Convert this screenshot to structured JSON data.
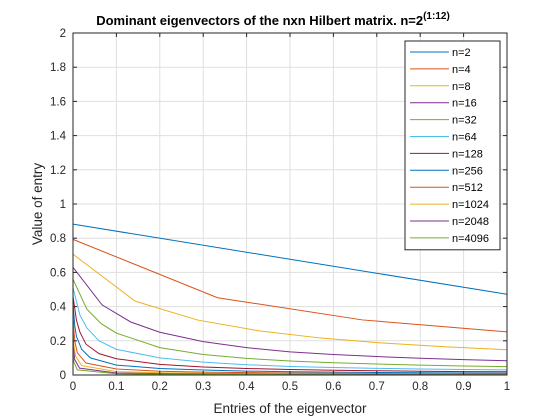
{
  "chart_data": {
    "type": "line",
    "title": "Dominant eigenvectors of the nxn Hilbert matrix. n=2",
    "title_superscript": "(1:12)",
    "xlabel": "Entries of the eigenvector",
    "ylabel": "Value of entry",
    "xlim": [
      0,
      1
    ],
    "ylim": [
      0,
      2
    ],
    "xticks": [
      "0",
      "0.1",
      "0.2",
      "0.3",
      "0.4",
      "0.5",
      "0.6",
      "0.7",
      "0.8",
      "0.9",
      "1"
    ],
    "yticks": [
      "0",
      "0.2",
      "0.4",
      "0.6",
      "0.8",
      "1",
      "1.2",
      "1.4",
      "1.6",
      "1.8",
      "2"
    ],
    "grid": true,
    "legend_position": "top-right",
    "series": [
      {
        "name": "n=2",
        "color": "#0072BD",
        "x": [
          0,
          1
        ],
        "y": [
          0.882,
          0.472
        ]
      },
      {
        "name": "n=4",
        "color": "#D95319",
        "x": [
          0,
          0.333,
          0.667,
          1
        ],
        "y": [
          0.793,
          0.452,
          0.322,
          0.252
        ]
      },
      {
        "name": "n=8",
        "color": "#EDB120",
        "x": [
          0,
          0.143,
          0.286,
          0.429,
          0.571,
          0.714,
          0.857,
          1
        ],
        "y": [
          0.706,
          0.432,
          0.322,
          0.258,
          0.216,
          0.187,
          0.165,
          0.148
        ]
      },
      {
        "name": "n=16",
        "color": "#7E2F8E",
        "x": [
          0,
          0.067,
          0.133,
          0.2,
          0.3,
          0.4,
          0.5,
          0.6,
          0.7,
          0.8,
          0.9,
          1
        ],
        "y": [
          0.63,
          0.41,
          0.31,
          0.25,
          0.195,
          0.16,
          0.135,
          0.12,
          0.108,
          0.098,
          0.09,
          0.083
        ]
      },
      {
        "name": "n=32",
        "color": "#77AC30",
        "x": [
          0,
          0.032,
          0.065,
          0.1,
          0.2,
          0.3,
          0.4,
          0.5,
          0.6,
          0.7,
          0.8,
          0.9,
          1
        ],
        "y": [
          0.56,
          0.385,
          0.3,
          0.245,
          0.16,
          0.12,
          0.097,
          0.082,
          0.072,
          0.064,
          0.058,
          0.053,
          0.049
        ]
      },
      {
        "name": "n=64",
        "color": "#4DBEEE",
        "x": [
          0,
          0.016,
          0.032,
          0.06,
          0.1,
          0.2,
          0.3,
          0.4,
          0.5,
          0.6,
          0.7,
          0.8,
          0.9,
          1
        ],
        "y": [
          0.51,
          0.35,
          0.275,
          0.2,
          0.15,
          0.1,
          0.075,
          0.06,
          0.05,
          0.044,
          0.039,
          0.035,
          0.032,
          0.03
        ]
      },
      {
        "name": "n=128",
        "color": "#A2142F",
        "x": [
          0,
          0.008,
          0.016,
          0.03,
          0.06,
          0.1,
          0.2,
          0.3,
          0.4,
          0.5,
          0.6,
          0.7,
          0.8,
          0.9,
          1
        ],
        "y": [
          0.46,
          0.32,
          0.25,
          0.18,
          0.125,
          0.095,
          0.062,
          0.047,
          0.038,
          0.032,
          0.028,
          0.025,
          0.022,
          0.02,
          0.019
        ]
      },
      {
        "name": "n=256",
        "color": "#0072BD",
        "x": [
          0,
          0.004,
          0.008,
          0.02,
          0.04,
          0.1,
          0.2,
          0.3,
          0.4,
          0.5,
          0.6,
          0.7,
          0.8,
          0.9,
          1
        ],
        "y": [
          0.42,
          0.29,
          0.225,
          0.15,
          0.1,
          0.058,
          0.038,
          0.029,
          0.023,
          0.019,
          0.017,
          0.015,
          0.013,
          0.012,
          0.011
        ]
      },
      {
        "name": "n=512",
        "color": "#D95319",
        "x": [
          0,
          0.002,
          0.004,
          0.01,
          0.03,
          0.1,
          0.2,
          0.3,
          0.4,
          0.5,
          0.6,
          0.7,
          0.8,
          0.9,
          1
        ],
        "y": [
          0.38,
          0.265,
          0.2,
          0.13,
          0.07,
          0.035,
          0.022,
          0.017,
          0.014,
          0.012,
          0.01,
          0.009,
          0.008,
          0.0075,
          0.007
        ]
      },
      {
        "name": "n=1024",
        "color": "#EDB120",
        "x": [
          0,
          0.001,
          0.002,
          0.006,
          0.02,
          0.1,
          0.2,
          0.3,
          0.4,
          0.5,
          0.6,
          0.7,
          0.8,
          0.9,
          1
        ],
        "y": [
          0.35,
          0.24,
          0.18,
          0.11,
          0.055,
          0.02,
          0.013,
          0.01,
          0.008,
          0.007,
          0.006,
          0.005,
          0.0045,
          0.0042,
          0.004
        ]
      },
      {
        "name": "n=2048",
        "color": "#7E2F8E",
        "x": [
          0,
          0.0005,
          0.001,
          0.004,
          0.015,
          0.1,
          0.2,
          0.3,
          0.4,
          0.5,
          0.6,
          0.7,
          0.8,
          0.9,
          1
        ],
        "y": [
          0.32,
          0.22,
          0.165,
          0.09,
          0.04,
          0.012,
          0.008,
          0.006,
          0.005,
          0.004,
          0.0035,
          0.003,
          0.0027,
          0.0025,
          0.0023
        ]
      },
      {
        "name": "n=4096",
        "color": "#77AC30",
        "x": [
          0,
          0.00025,
          0.0005,
          0.002,
          0.01,
          0.1,
          0.2,
          0.3,
          0.4,
          0.5,
          0.6,
          0.7,
          0.8,
          0.9,
          1
        ],
        "y": [
          0.3,
          0.2,
          0.15,
          0.075,
          0.03,
          0.007,
          0.0045,
          0.0035,
          0.003,
          0.0025,
          0.0021,
          0.0018,
          0.0016,
          0.0015,
          0.0014
        ]
      }
    ]
  }
}
